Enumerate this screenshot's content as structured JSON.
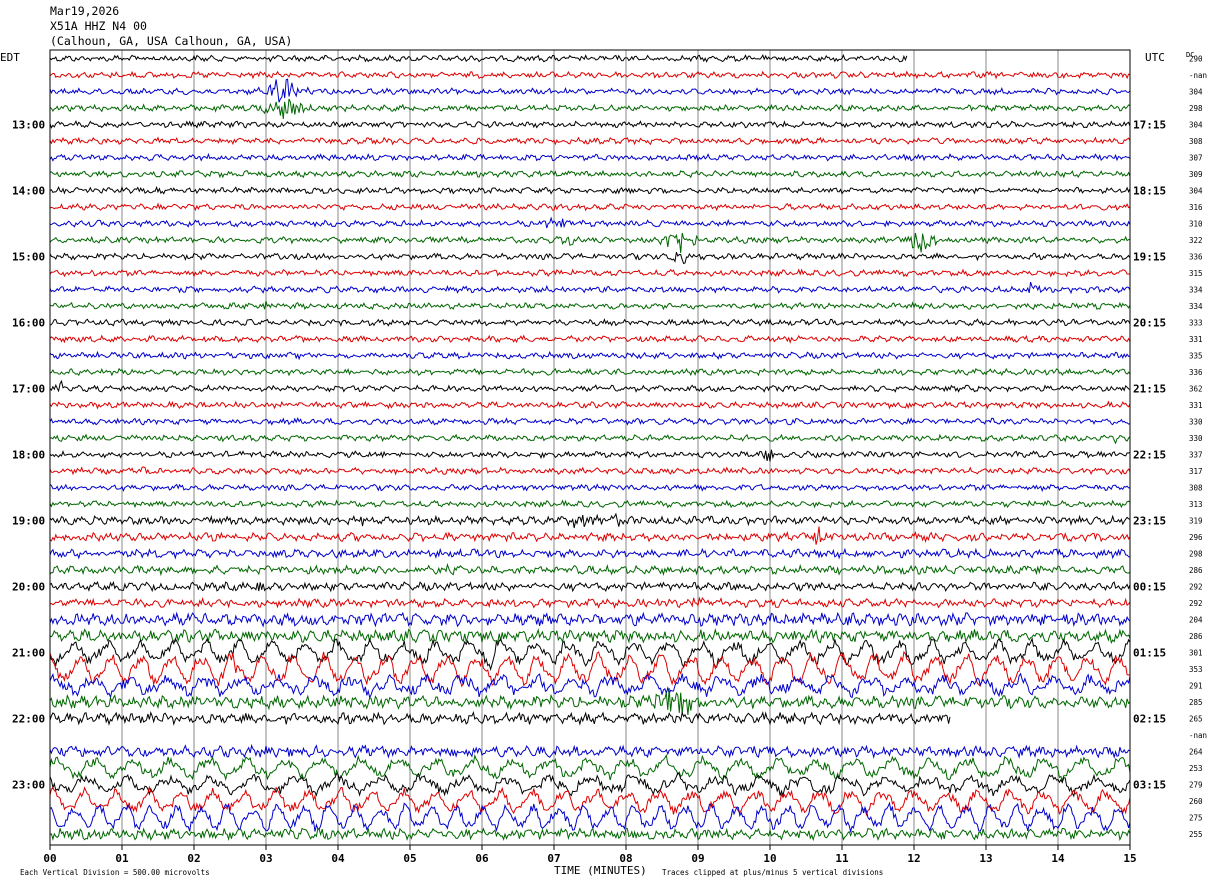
{
  "header": {
    "date": "Mar19,2026",
    "station": "X51A HHZ N4 00",
    "location": "(Calhoun, GA, USA Calhoun, GA, USA)"
  },
  "left_tz": "EDT",
  "right_tz": "UTC",
  "dc_label": "DC",
  "footer": {
    "scale": "Each Vertical Division =  500.00 microvolts",
    "xlabel": "TIME (MINUTES)",
    "clip": "Traces clipped at plus/minus 5 vertical divisions"
  },
  "chart_data": {
    "type": "line",
    "title": "X51A HHZ N4 00",
    "xlabel": "TIME (MINUTES)",
    "xlim": [
      0,
      15
    ],
    "x_ticks": [
      "00",
      "01",
      "02",
      "03",
      "04",
      "05",
      "06",
      "07",
      "08",
      "09",
      "10",
      "11",
      "12",
      "13",
      "14",
      "15"
    ],
    "grid": "vertical lines each minute",
    "trace_colors": [
      "#000000",
      "#dd0000",
      "#0000cc",
      "#006600"
    ],
    "left_hour_labels": [
      "13:00",
      "14:00",
      "15:00",
      "16:00",
      "17:00",
      "18:00",
      "19:00",
      "20:00",
      "21:00",
      "22:00",
      "23:00"
    ],
    "right_hour_labels": [
      "17:15",
      "18:15",
      "19:15",
      "20:15",
      "21:15",
      "22:15",
      "23:15",
      "00:15",
      "01:15",
      "02:15",
      "03:15"
    ],
    "dc_offsets": [
      "290",
      "-nan",
      "304",
      "298",
      "304",
      "308",
      "307",
      "309",
      "304",
      "316",
      "310",
      "322",
      "336",
      "315",
      "334",
      "334",
      "333",
      "331",
      "335",
      "336",
      "362",
      "331",
      "330",
      "330",
      "337",
      "317",
      "308",
      "313",
      "319",
      "296",
      "298",
      "286",
      "292",
      "292",
      "204",
      "286",
      "301",
      "353",
      "291",
      "285",
      "265",
      "-nan",
      "264",
      "253",
      "279",
      "260",
      "275",
      "255"
    ],
    "trace_count": 48,
    "minutes_per_line": 15
  }
}
